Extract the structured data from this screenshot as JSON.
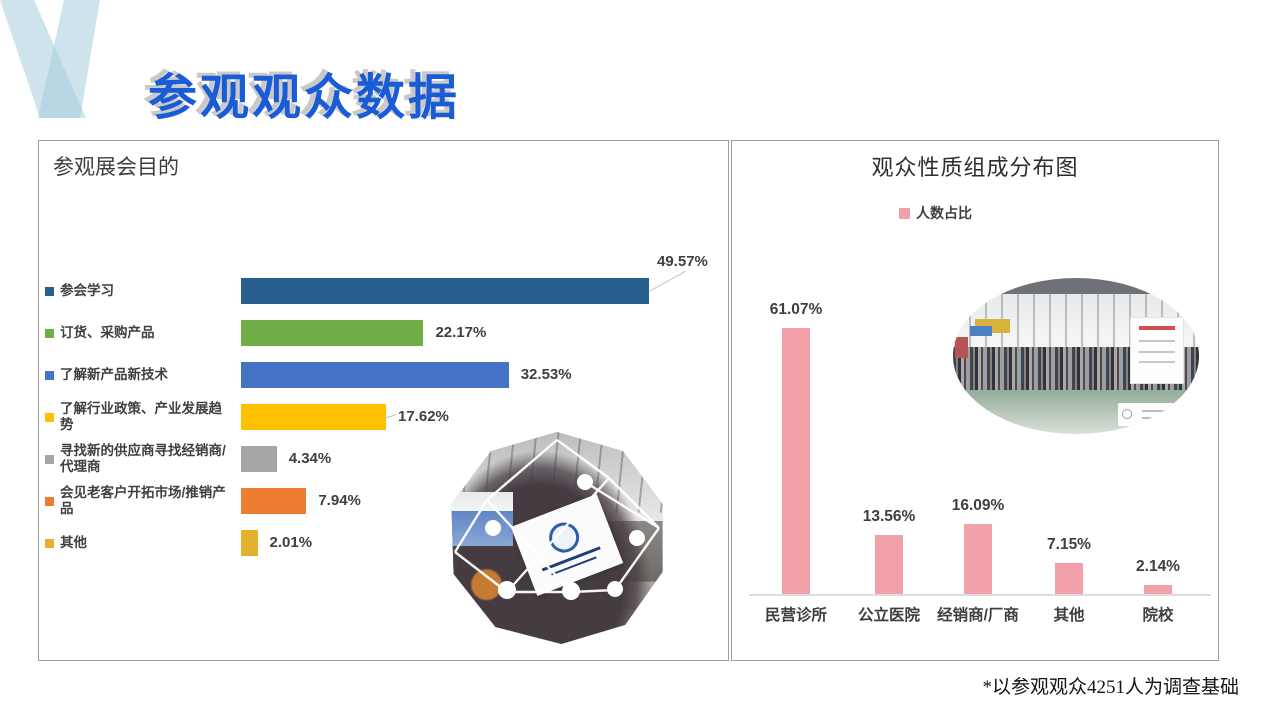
{
  "slide": {
    "title": "参观观众数据",
    "footnote": "*以参观观众4251人为调查基础",
    "accent_blue": "#1a5cd6",
    "decor_color": "#a8ccdf"
  },
  "left_panel": {
    "title": "参观展会目的"
  },
  "right_panel": {
    "title": "观众性质组成分布图",
    "legend_label": "人数占比",
    "bar_color": "#F2A0A9"
  },
  "chart_data": [
    {
      "type": "bar",
      "orientation": "horizontal",
      "title": "参观展会目的",
      "categories": [
        "参会学习",
        "订货、采购产品",
        "了解新产品新技术",
        "了解行业政策、产业发展趋势",
        "寻找新的供应商寻找经销商/代理商",
        "会见老客户开拓市场/推销产品",
        "其他"
      ],
      "values": [
        49.57,
        22.17,
        32.53,
        17.62,
        4.34,
        7.94,
        2.01
      ],
      "labels": [
        "49.57%",
        "22.17%",
        "32.53%",
        "17.62%",
        "4.34%",
        "7.94%",
        "2.01%"
      ],
      "colors": [
        "#27608E",
        "#70AD47",
        "#4472C4",
        "#FFC000",
        "#A6A6A6",
        "#ED7D31",
        "#E3B12D"
      ],
      "xlim": [
        0,
        55
      ],
      "grid": false,
      "legend_position": "left"
    },
    {
      "type": "bar",
      "orientation": "vertical",
      "title": "观众性质组成分布图",
      "categories": [
        "民营诊所",
        "公立医院",
        "经销商/厂商",
        "其他",
        "院校"
      ],
      "series": [
        {
          "name": "人数占比",
          "values": [
            61.07,
            13.56,
            16.09,
            7.15,
            2.14
          ]
        }
      ],
      "labels": [
        "61.07%",
        "13.56%",
        "16.09%",
        "7.15%",
        "2.14%"
      ],
      "color": "#F2A0A9",
      "ylim": [
        0,
        65
      ],
      "grid": false,
      "legend_position": "top"
    }
  ]
}
